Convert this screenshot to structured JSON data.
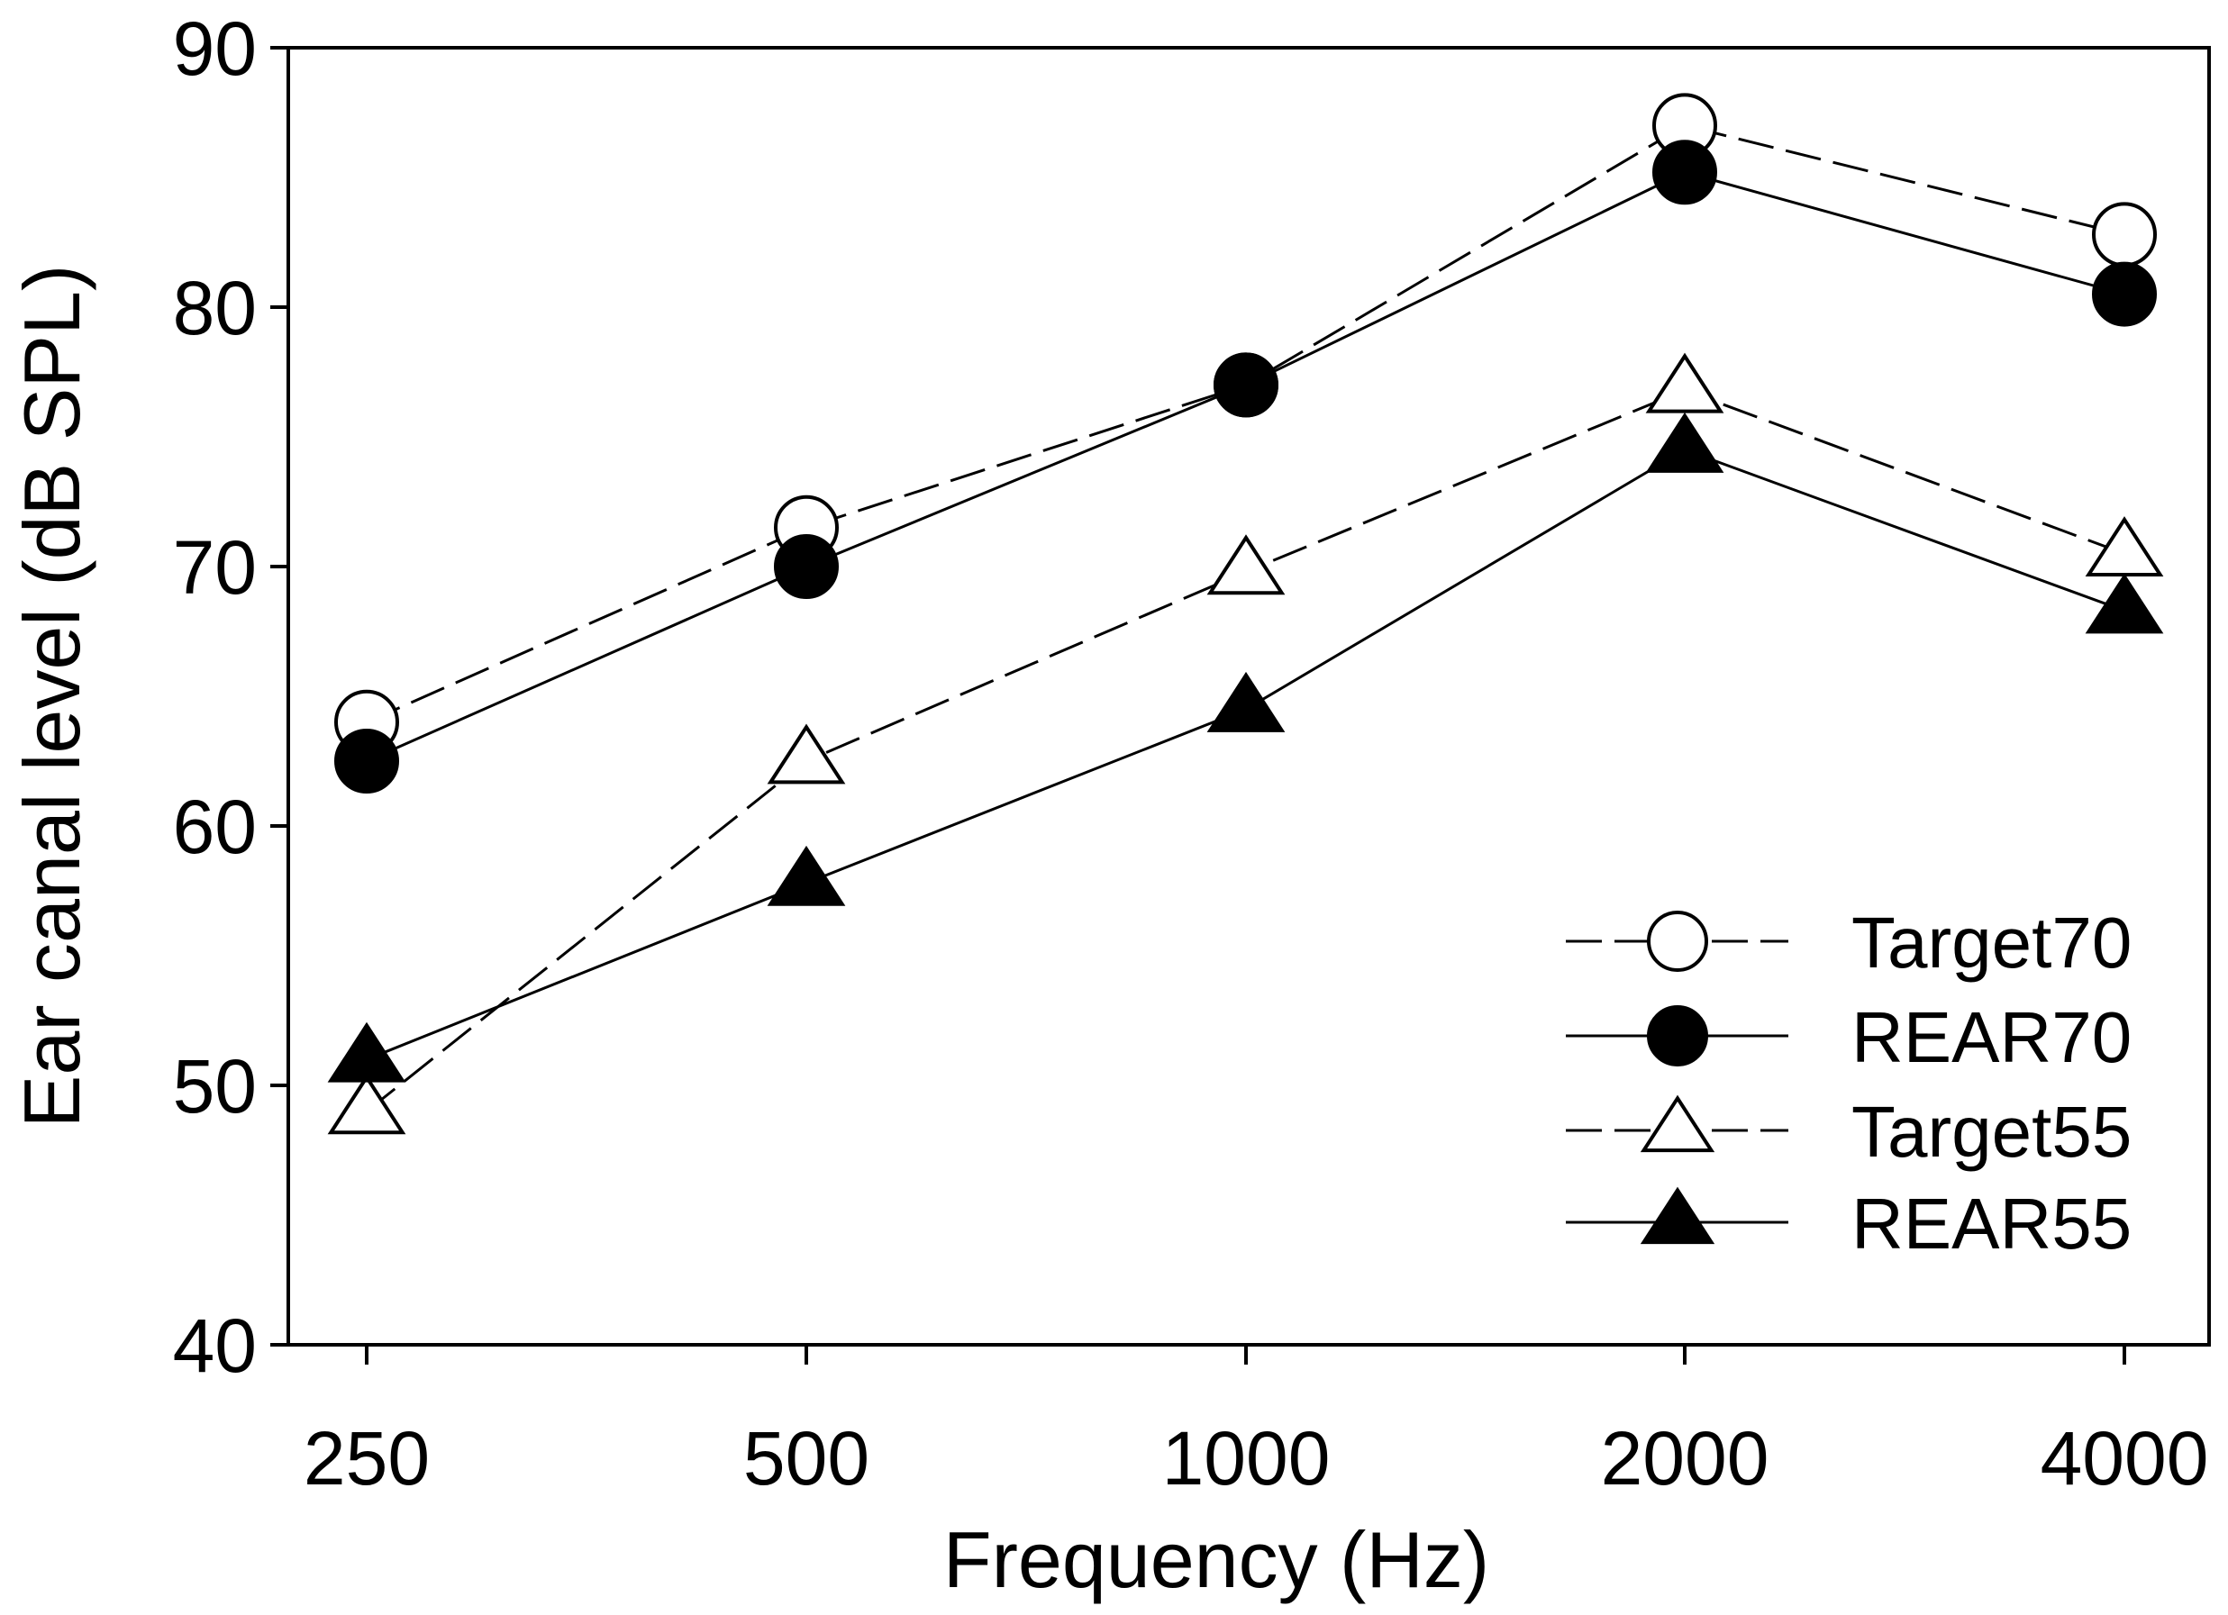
{
  "chart_data": {
    "type": "line",
    "title": "",
    "xlabel": "Frequency (Hz)",
    "ylabel": "Ear canal level (dB SPL)",
    "categories": [
      "250",
      "500",
      "1000",
      "2000",
      "4000"
    ],
    "ylim": [
      40,
      90
    ],
    "yticks": [
      40,
      50,
      60,
      70,
      80,
      90
    ],
    "grid": false,
    "legend_position": "bottom-right",
    "series": [
      {
        "name": "Target70",
        "values": [
          64.0,
          71.5,
          77.0,
          87.0,
          82.8
        ],
        "marker": "circle",
        "filled": false,
        "line": "dashed"
      },
      {
        "name": "REAR70",
        "values": [
          62.5,
          70.0,
          77.0,
          85.2,
          80.5
        ],
        "marker": "circle",
        "filled": true,
        "line": "solid"
      },
      {
        "name": "Target55",
        "values": [
          49.0,
          62.5,
          69.8,
          76.8,
          70.5
        ],
        "marker": "triangle",
        "filled": false,
        "line": "dashed"
      },
      {
        "name": "REAR55",
        "values": [
          51.0,
          57.8,
          64.5,
          74.5,
          68.3
        ],
        "marker": "triangle",
        "filled": true,
        "line": "solid"
      }
    ]
  },
  "colors": {
    "ink": "#000000",
    "background": "#ffffff"
  }
}
